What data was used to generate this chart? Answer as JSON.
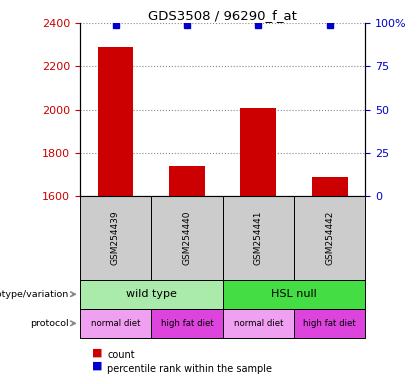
{
  "title": "GDS3508 / 96290_f_at",
  "samples": [
    "GSM254439",
    "GSM254440",
    "GSM254441",
    "GSM254442"
  ],
  "counts": [
    2290,
    1740,
    2010,
    1690
  ],
  "percentile_ranks": [
    99,
    99,
    99,
    99
  ],
  "ylim_left": [
    1600,
    2400
  ],
  "ylim_right": [
    0,
    100
  ],
  "yticks_left": [
    1600,
    1800,
    2000,
    2200,
    2400
  ],
  "yticks_right": [
    0,
    25,
    50,
    75,
    100
  ],
  "ytick_labels_right": [
    "0",
    "25",
    "50",
    "75",
    "100%"
  ],
  "bar_color": "#cc0000",
  "dot_color": "#0000cc",
  "bar_width": 0.5,
  "sample_box_color": "#cccccc",
  "genotype_groups": [
    {
      "label": "wild type",
      "cols": [
        0,
        1
      ],
      "color": "#aaeaaa"
    },
    {
      "label": "HSL null",
      "cols": [
        2,
        3
      ],
      "color": "#44dd44"
    }
  ],
  "protocol_groups": [
    {
      "label": "normal diet",
      "col": 0,
      "color": "#f0a0f0"
    },
    {
      "label": "high fat diet",
      "col": 1,
      "color": "#dd44dd"
    },
    {
      "label": "normal diet",
      "col": 2,
      "color": "#f0a0f0"
    },
    {
      "label": "high fat diet",
      "col": 3,
      "color": "#dd44dd"
    }
  ],
  "legend_count_color": "#cc0000",
  "legend_pct_color": "#0000cc",
  "left_label_color": "#cc0000",
  "right_label_color": "#0000cc",
  "grid_color": "#888888",
  "arrow_color": "#888888"
}
